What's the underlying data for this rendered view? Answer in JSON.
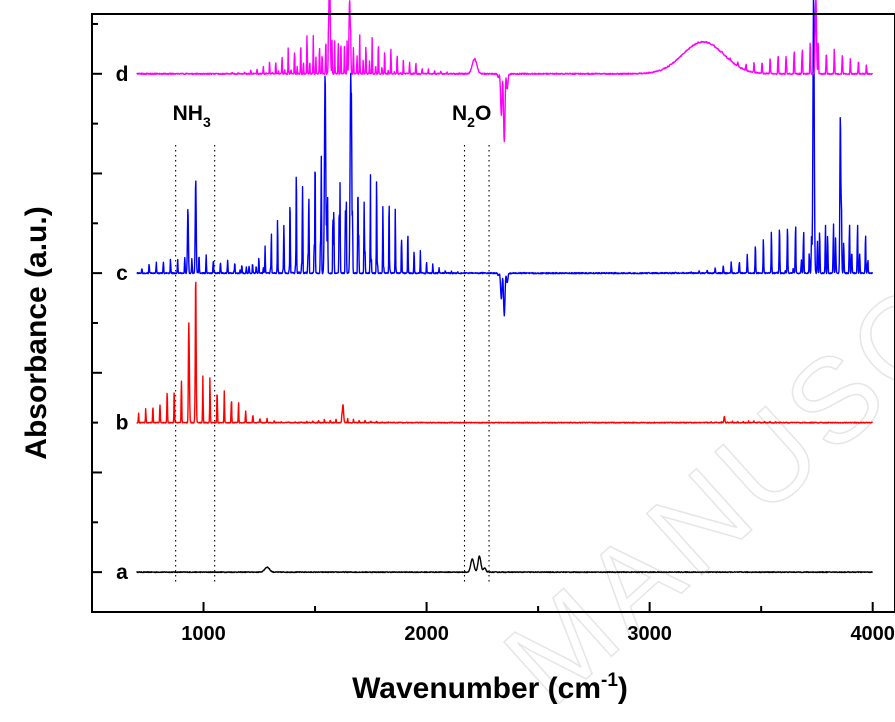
{
  "chart_data": {
    "type": "line",
    "xlabel": "Wavenumber (cm",
    "xlabel_sup": "-1",
    "xlabel_end": ")",
    "ylabel": "Absorbance (a.u.)",
    "xlim": [
      500,
      4100
    ],
    "ylim": [
      -0.4,
      5.6
    ],
    "xticks": [
      1000,
      2000,
      3000,
      4000
    ],
    "yticks_unlabeled": true,
    "grid": false,
    "legend": "none",
    "colors": {
      "a": "#000000",
      "b": "#ff0000",
      "c": "#0000ff",
      "d": "#ff00ff"
    },
    "series": [
      {
        "name": "a",
        "offset": 0,
        "color": "#000000",
        "baseline_range": [
          700,
          4000
        ],
        "peaks": [
          {
            "x": 1285,
            "h": 0.05,
            "w": 15
          },
          {
            "x": 2205,
            "h": 0.13,
            "w": 10
          },
          {
            "x": 2237,
            "h": 0.16,
            "w": 9
          },
          {
            "x": 2260,
            "h": 0.04,
            "w": 8
          }
        ],
        "noise": 0.004
      },
      {
        "name": "b",
        "offset": 1.5,
        "color": "#ff0000",
        "baseline_range": [
          700,
          4000
        ],
        "bands": [
          {
            "center": 965,
            "width": 200,
            "height": 0.55,
            "spacing": 16
          },
          {
            "center": 1620,
            "width": 150,
            "height": 0.05,
            "spacing": 13
          },
          {
            "center": 3420,
            "width": 140,
            "height": 0.02,
            "spacing": 12
          }
        ],
        "peaks": [
          {
            "x": 935,
            "h": 0.75,
            "w": 3
          },
          {
            "x": 965,
            "h": 1.05,
            "w": 3
          },
          {
            "x": 1625,
            "h": 0.18,
            "w": 4
          },
          {
            "x": 3335,
            "h": 0.06,
            "w": 3
          }
        ],
        "noise": 0.004
      },
      {
        "name": "c",
        "offset": 3.0,
        "color": "#0000ff",
        "baseline_range": [
          700,
          4000
        ],
        "bands": [
          {
            "center": 980,
            "width": 260,
            "height": 0.2,
            "spacing": 16
          },
          {
            "center": 1500,
            "width": 180,
            "height": 1.45,
            "spacing": 14
          },
          {
            "center": 1720,
            "width": 200,
            "height": 1.15,
            "spacing": 14
          },
          {
            "center": 3690,
            "width": 260,
            "height": 0.6,
            "spacing": 18
          },
          {
            "center": 3860,
            "width": 140,
            "height": 0.75,
            "spacing": 18
          }
        ],
        "peaks": [
          {
            "x": 930,
            "h": 0.65,
            "w": 3
          },
          {
            "x": 965,
            "h": 0.95,
            "w": 3
          },
          {
            "x": 1545,
            "h": 2.0,
            "w": 4
          },
          {
            "x": 1660,
            "h": 2.0,
            "w": 4
          },
          {
            "x": 3735,
            "h": 2.8,
            "w": 4
          },
          {
            "x": 3855,
            "h": 1.6,
            "w": 3
          }
        ],
        "dips": [
          {
            "x": 2345,
            "h": -0.25,
            "w": 14
          }
        ],
        "noise": 0.006
      },
      {
        "name": "d",
        "offset": 5.0,
        "color": "#ff00ff",
        "baseline_range": [
          700,
          4000
        ],
        "bands": [
          {
            "center": 1520,
            "width": 200,
            "height": 0.5,
            "spacing": 14
          },
          {
            "center": 1700,
            "width": 220,
            "height": 0.45,
            "spacing": 14
          },
          {
            "center": 3720,
            "width": 230,
            "height": 0.35,
            "spacing": 18
          }
        ],
        "broad": [
          {
            "x": 3240,
            "h": 0.32,
            "w": 130
          }
        ],
        "peaks": [
          {
            "x": 1565,
            "h": 1.1,
            "w": 4
          },
          {
            "x": 1655,
            "h": 0.75,
            "w": 4
          },
          {
            "x": 2215,
            "h": 0.15,
            "w": 14
          },
          {
            "x": 3745,
            "h": 0.8,
            "w": 4
          }
        ],
        "dips": [
          {
            "x": 2345,
            "h": -0.4,
            "w": 14
          }
        ],
        "noise": 0.006
      }
    ],
    "trace_labels": [
      {
        "text": "a",
        "series": "a"
      },
      {
        "text": "b",
        "series": "b"
      },
      {
        "text": "c",
        "series": "c"
      },
      {
        "text": "d",
        "series": "d"
      }
    ],
    "annotations": [
      {
        "text": "NH",
        "sub": "3",
        "x": 965,
        "lines": [
          875,
          1050
        ]
      },
      {
        "text": "N",
        "sub": "2",
        "text_end": "O",
        "x": 2220,
        "lines": [
          2170,
          2280
        ]
      }
    ]
  },
  "watermark": "MANUSCRIPT"
}
